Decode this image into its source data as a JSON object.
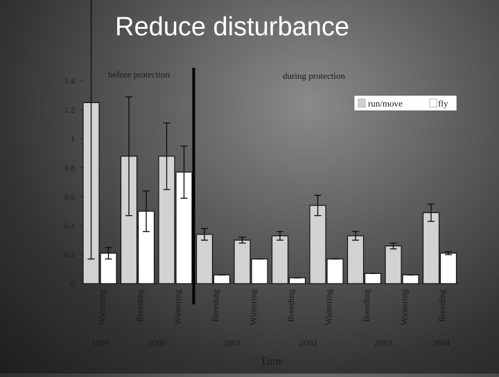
{
  "slide": {
    "title": "Reduce disturbance"
  },
  "colors": {
    "run_move": "#d2d2d2",
    "fly": "#ffffff",
    "divider": "#000000",
    "axis_text": "#1a1a1a"
  },
  "chart_data": {
    "type": "bar",
    "title": "",
    "xlabel": "Time",
    "ylabel": "",
    "ylim": [
      0,
      1.4
    ],
    "yticks": [
      "0",
      "0.2",
      "0.4",
      "0.6",
      "0.8",
      "1",
      "1.2",
      "1.4"
    ],
    "grid": false,
    "legend_placement": "top-right",
    "legend": [
      "run/move",
      "fly"
    ],
    "period_labels": [
      "before protection",
      "during protection"
    ],
    "categories": [
      "Wintering",
      "Breeding",
      "Wintering",
      "Breeding",
      "Wintering",
      "Breeding",
      "Wintering",
      "Breeding",
      "Wintering",
      "Breeding"
    ],
    "years": [
      "1999",
      "2000",
      "2001",
      "2002",
      "2003",
      "2004"
    ],
    "series": [
      {
        "name": "run/move",
        "values": [
          1.25,
          0.88,
          0.88,
          0.34,
          0.3,
          0.33,
          0.54,
          0.33,
          0.26,
          0.49
        ],
        "error": [
          1.08,
          0.41,
          0.23,
          0.04,
          0.02,
          0.03,
          0.07,
          0.03,
          0.02,
          0.06
        ]
      },
      {
        "name": "fly",
        "values": [
          0.21,
          0.5,
          0.77,
          0.06,
          0.17,
          0.04,
          0.17,
          0.07,
          0.06,
          0.21
        ],
        "error": [
          0.04,
          0.14,
          0.18,
          0,
          0,
          0,
          0,
          0,
          0,
          0.01
        ]
      }
    ]
  }
}
